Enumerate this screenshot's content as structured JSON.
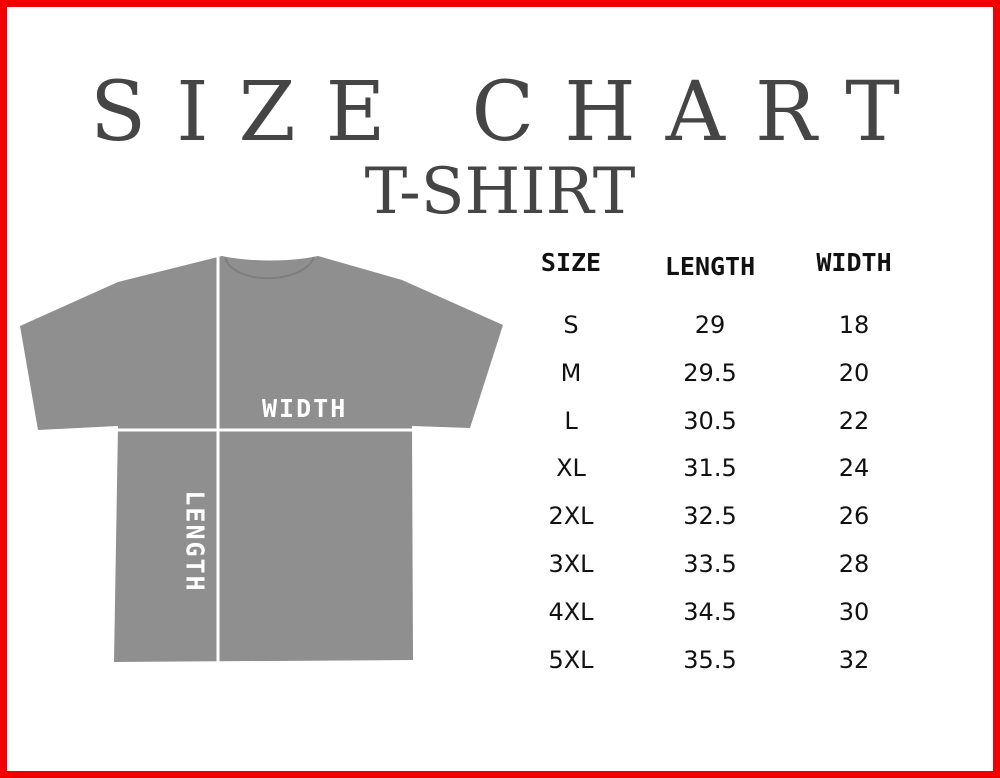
{
  "title": "SIZE CHART",
  "subtitle": "T-SHIRT",
  "colors": {
    "border": "#f00000",
    "shirt": "#8f8f8f",
    "text": "#454545"
  },
  "shirt_labels": {
    "width": "WIDTH",
    "length": "LENGTH"
  },
  "table": {
    "headers": [
      "SIZE",
      "LENGTH",
      "WIDTH"
    ],
    "rows": [
      [
        "S",
        "29",
        "18"
      ],
      [
        "M",
        "29.5",
        "20"
      ],
      [
        "L",
        "30.5",
        "22"
      ],
      [
        "XL",
        "31.5",
        "24"
      ],
      [
        "2XL",
        "32.5",
        "26"
      ],
      [
        "3XL",
        "33.5",
        "28"
      ],
      [
        "4XL",
        "34.5",
        "30"
      ],
      [
        "5XL",
        "35.5",
        "32"
      ]
    ]
  }
}
